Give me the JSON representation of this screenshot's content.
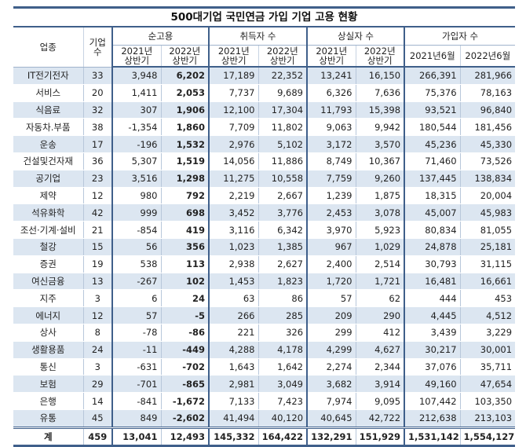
{
  "title": "500대기업 국민연금 가입 기업 고용 현황",
  "headers": {
    "industry": "업종",
    "count": "기업\n수",
    "net": "순고용",
    "hires": "취득자 수",
    "losses": "상실자 수",
    "members": "가입자 수",
    "h2021": "2021년\n상반기",
    "h2022": "2022년\n상반기",
    "m2021": "2021년6월",
    "m2022": "2022년6월"
  },
  "rows": [
    [
      "IT전기전자",
      "33",
      "3,948",
      "6,202",
      "17,189",
      "22,352",
      "13,241",
      "16,150",
      "266,391",
      "281,966"
    ],
    [
      "서비스",
      "20",
      "1,411",
      "2,053",
      "7,737",
      "9,689",
      "6,326",
      "7,636",
      "75,376",
      "78,163"
    ],
    [
      "식음료",
      "32",
      "307",
      "1,906",
      "12,100",
      "17,304",
      "11,793",
      "15,398",
      "93,521",
      "96,840"
    ],
    [
      "자동차.부품",
      "38",
      "-1,354",
      "1,860",
      "7,709",
      "11,802",
      "9,063",
      "9,942",
      "180,544",
      "181,456"
    ],
    [
      "운송",
      "17",
      "-196",
      "1,532",
      "2,976",
      "5,102",
      "3,172",
      "3,570",
      "45,236",
      "45,330"
    ],
    [
      "건설및건자재",
      "36",
      "5,307",
      "1,519",
      "14,056",
      "11,886",
      "8,749",
      "10,367",
      "71,460",
      "73,526"
    ],
    [
      "공기업",
      "23",
      "3,516",
      "1,298",
      "11,275",
      "10,558",
      "7,759",
      "9,260",
      "137,445",
      "138,834"
    ],
    [
      "제약",
      "12",
      "980",
      "792",
      "2,219",
      "2,667",
      "1,239",
      "1,875",
      "18,315",
      "20,004"
    ],
    [
      "석유화학",
      "42",
      "999",
      "698",
      "3,452",
      "3,776",
      "2,453",
      "3,078",
      "45,007",
      "45,983"
    ],
    [
      "조선·기계·설비",
      "21",
      "-854",
      "419",
      "3,116",
      "6,342",
      "3,970",
      "5,923",
      "80,834",
      "81,055"
    ],
    [
      "철강",
      "15",
      "56",
      "356",
      "1,023",
      "1,385",
      "967",
      "1,029",
      "24,878",
      "25,181"
    ],
    [
      "증권",
      "19",
      "538",
      "113",
      "2,938",
      "2,627",
      "2,400",
      "2,514",
      "30,793",
      "31,115"
    ],
    [
      "여신금융",
      "13",
      "-267",
      "102",
      "1,453",
      "1,823",
      "1,720",
      "1,721",
      "16,481",
      "16,661"
    ],
    [
      "지주",
      "3",
      "6",
      "24",
      "63",
      "86",
      "57",
      "62",
      "444",
      "453"
    ],
    [
      "에너지",
      "12",
      "57",
      "-5",
      "266",
      "285",
      "209",
      "290",
      "4,445",
      "4,512"
    ],
    [
      "상사",
      "8",
      "-78",
      "-86",
      "221",
      "326",
      "299",
      "412",
      "3,439",
      "3,229"
    ],
    [
      "생활용품",
      "24",
      "-11",
      "-449",
      "4,288",
      "4,178",
      "4,299",
      "4,627",
      "30,217",
      "30,001"
    ],
    [
      "통신",
      "3",
      "-631",
      "-702",
      "1,643",
      "1,642",
      "2,274",
      "2,344",
      "37,076",
      "35,711"
    ],
    [
      "보험",
      "29",
      "-701",
      "-865",
      "2,981",
      "3,049",
      "3,682",
      "3,914",
      "49,160",
      "47,654"
    ],
    [
      "은행",
      "14",
      "-841",
      "-1,672",
      "7,133",
      "7,423",
      "7,974",
      "9,095",
      "107,442",
      "103,350"
    ],
    [
      "유통",
      "45",
      "849",
      "-2,602",
      "41,494",
      "40,120",
      "40,645",
      "42,722",
      "212,638",
      "213,103"
    ]
  ],
  "total": [
    "계",
    "459",
    "13,041",
    "12,493",
    "145,332",
    "164,422",
    "132,291",
    "151,929",
    "1,531,142",
    "1,554,127"
  ]
}
